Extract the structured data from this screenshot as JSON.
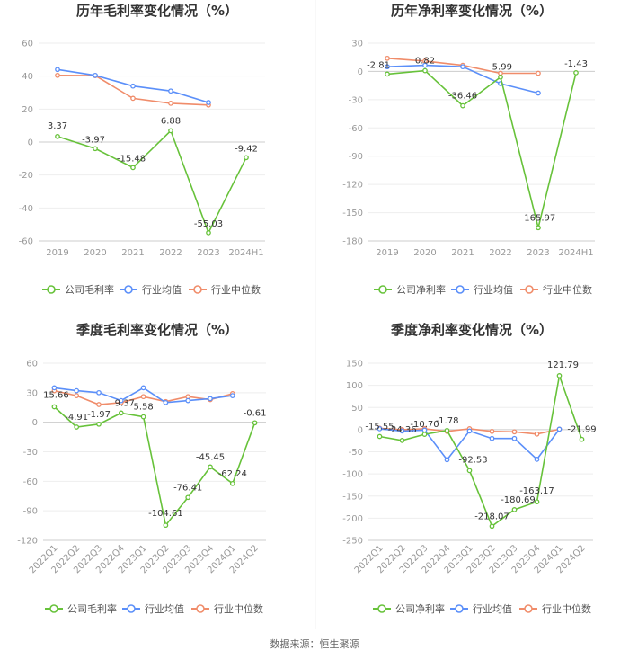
{
  "source": "数据来源：恒生聚源",
  "colors": {
    "company": "#67c23a",
    "avg": "#5b8ff9",
    "median": "#f08c6a",
    "grid": "#eeeeee",
    "axis": "#cccccc"
  },
  "chart_data": [
    {
      "type": "line",
      "title": "历年毛利率变化情况（%）",
      "categories": [
        "2019",
        "2020",
        "2021",
        "2022",
        "2023",
        "2024H1"
      ],
      "ylim": [
        -60,
        60
      ],
      "yticks": [
        60,
        40,
        20,
        0,
        -20,
        -40,
        -60
      ],
      "legend": [
        "公司毛利率",
        "行业均值",
        "行业中位数"
      ],
      "series": [
        {
          "name": "公司毛利率",
          "values": [
            3.37,
            -3.97,
            -15.48,
            6.88,
            -55.03,
            -9.42
          ],
          "labels": [
            "3.37",
            "-3.97",
            "-15.48",
            "6.88",
            "-55.03",
            "-9.42"
          ]
        },
        {
          "name": "行业均值",
          "values": [
            44.0,
            40.5,
            34.0,
            31.0,
            24.0,
            null
          ]
        },
        {
          "name": "行业中位数",
          "values": [
            40.5,
            40.3,
            26.5,
            23.5,
            22.5,
            null
          ]
        }
      ]
    },
    {
      "type": "line",
      "title": "历年净利率变化情况（%）",
      "categories": [
        "2019",
        "2020",
        "2021",
        "2022",
        "2023",
        "2024H1"
      ],
      "ylim": [
        -180,
        30
      ],
      "yticks": [
        30,
        0,
        -30,
        -60,
        -90,
        -120,
        -150,
        -180
      ],
      "legend": [
        "公司净利率",
        "行业均值",
        "行业中位数"
      ],
      "series": [
        {
          "name": "公司净利率",
          "values": [
            -2.81,
            0.82,
            -36.46,
            -5.99,
            -165.97,
            -1.43
          ],
          "labels": [
            "-2.81",
            "0.82",
            "-36.46",
            "-5.99",
            "-165.97",
            "-1.43"
          ]
        },
        {
          "name": "行业均值",
          "values": [
            5.0,
            6.5,
            5.0,
            -13.0,
            -23.0,
            null
          ]
        },
        {
          "name": "行业中位数",
          "values": [
            14.0,
            11.0,
            6.5,
            -2.0,
            -2.0,
            null
          ]
        }
      ]
    },
    {
      "type": "line",
      "title": "季度毛利率变化情况（%）",
      "categories": [
        "2022Q1",
        "2022Q2",
        "2022Q3",
        "2022Q4",
        "2023Q1",
        "2023Q2",
        "2023Q3",
        "2023Q4",
        "2024Q1",
        "2024Q2"
      ],
      "ylim": [
        -120,
        60
      ],
      "yticks": [
        60,
        30,
        0,
        -30,
        -60,
        -90,
        -120
      ],
      "legend": [
        "公司毛利率",
        "行业均值",
        "行业中位数"
      ],
      "series": [
        {
          "name": "公司毛利率",
          "values": [
            15.66,
            -4.91,
            -1.97,
            9.37,
            5.58,
            -104.61,
            -76.41,
            -45.45,
            -62.24,
            -0.61
          ],
          "labels": [
            "15.66",
            "-4.91",
            "-1.97",
            "9.37",
            "5.58",
            "-104.61",
            "-76.41",
            "-45.45",
            "-62.24",
            "-0.61"
          ]
        },
        {
          "name": "行业均值",
          "values": [
            35,
            32,
            30,
            22,
            35,
            20,
            22,
            24,
            27,
            null
          ]
        },
        {
          "name": "行业中位数",
          "values": [
            32,
            27,
            18,
            20,
            26,
            21,
            26,
            23,
            29,
            null
          ]
        }
      ]
    },
    {
      "type": "line",
      "title": "季度净利率变化情况（%）",
      "categories": [
        "2022Q1",
        "2022Q2",
        "2022Q3",
        "2022Q4",
        "2023Q1",
        "2023Q2",
        "2023Q3",
        "2023Q4",
        "2024Q1",
        "2024Q2"
      ],
      "ylim": [
        -250,
        150
      ],
      "yticks": [
        150,
        100,
        50,
        0,
        -50,
        -100,
        -150,
        -200,
        -250
      ],
      "legend": [
        "公司净利率",
        "行业均值",
        "行业中位数"
      ],
      "series": [
        {
          "name": "公司净利率",
          "values": [
            -15.55,
            -24.36,
            -10.7,
            -1.78,
            -92.53,
            -218.07,
            -180.69,
            -163.17,
            121.79,
            -21.99
          ],
          "labels": [
            "-15.55",
            "-24.36",
            "-10.70",
            "-1.78",
            "-92.53",
            "-218.07",
            "-180.69",
            "-163.17",
            "121.79",
            "-21.99"
          ]
        },
        {
          "name": "行业均值",
          "values": [
            2,
            -3,
            -1,
            -68,
            -3,
            -20,
            -20,
            -67,
            1,
            null
          ]
        },
        {
          "name": "行业中位数",
          "values": [
            3,
            0,
            2,
            -4,
            2,
            -4,
            -5,
            -10,
            1,
            null
          ]
        }
      ]
    }
  ]
}
